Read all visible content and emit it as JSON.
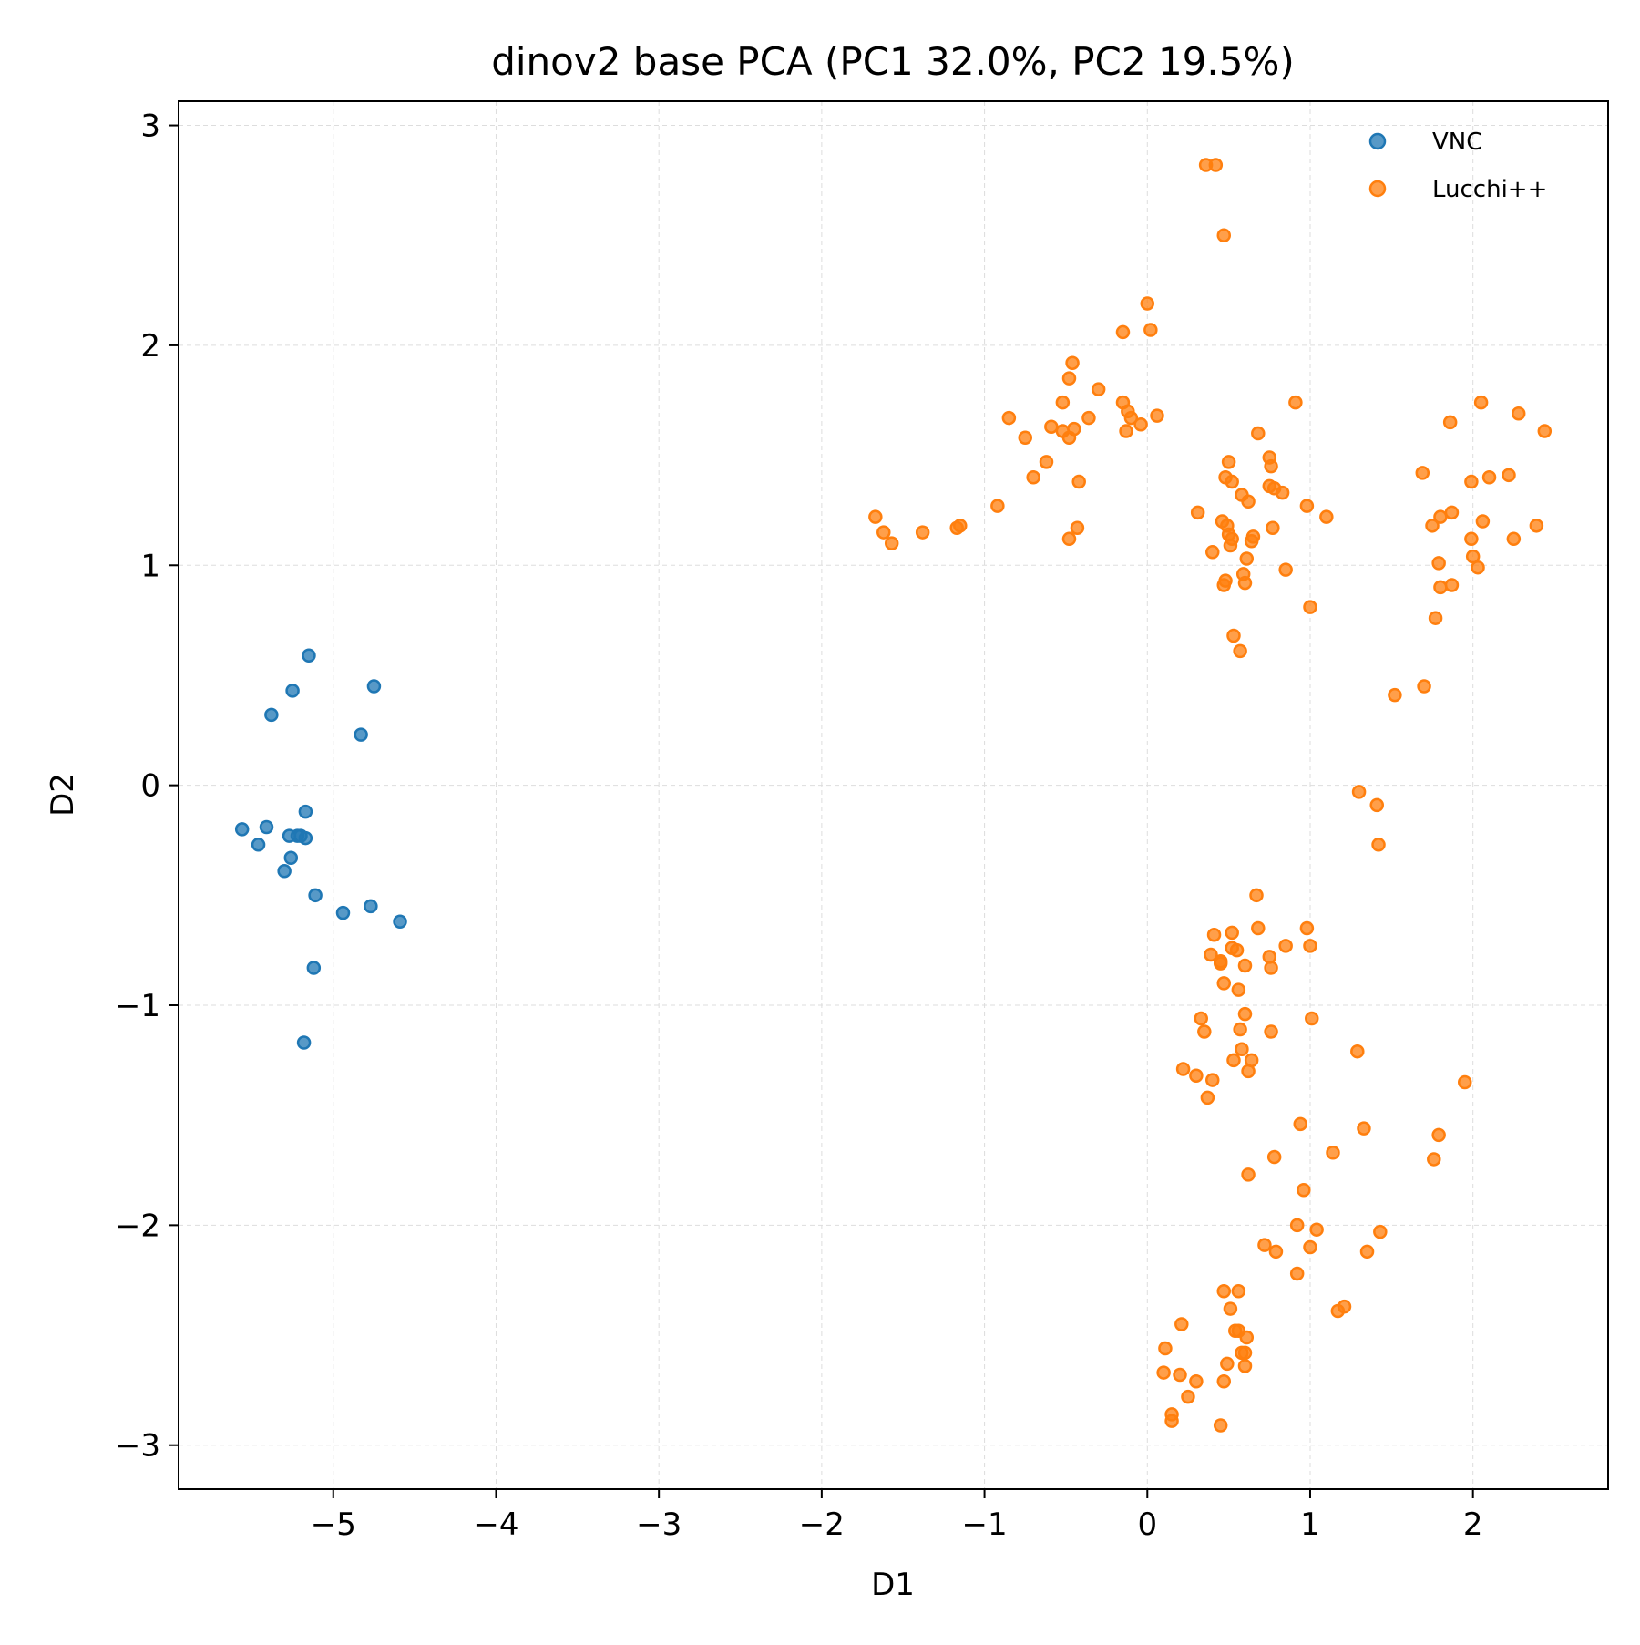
{
  "chart_data": {
    "type": "scatter",
    "title": "dinov2 base PCA (PC1 32.0%, PC2 19.5%)",
    "xlabel": "D1",
    "ylabel": "D2",
    "xlim": [
      -5.95,
      2.83
    ],
    "ylim": [
      -3.2,
      3.11
    ],
    "xticks": [
      -5,
      -4,
      -3,
      -2,
      -1,
      0,
      1,
      2
    ],
    "yticks": [
      -3,
      -2,
      -1,
      0,
      1,
      2,
      3
    ],
    "xtick_labels": [
      "−5",
      "−4",
      "−3",
      "−2",
      "−1",
      "0",
      "1",
      "2"
    ],
    "ytick_labels": [
      "−3",
      "−2",
      "−1",
      "0",
      "1",
      "2",
      "3"
    ],
    "grid": true,
    "legend_position": "top-right",
    "series": [
      {
        "name": "VNC",
        "color": "#1f77b4",
        "points": [
          [
            -5.15,
            0.59
          ],
          [
            -5.25,
            0.43
          ],
          [
            -4.75,
            0.45
          ],
          [
            -5.38,
            0.32
          ],
          [
            -4.83,
            0.23
          ],
          [
            -5.17,
            -0.12
          ],
          [
            -5.56,
            -0.2
          ],
          [
            -5.41,
            -0.19
          ],
          [
            -5.46,
            -0.27
          ],
          [
            -5.27,
            -0.23
          ],
          [
            -5.22,
            -0.23
          ],
          [
            -5.2,
            -0.23
          ],
          [
            -5.17,
            -0.24
          ],
          [
            -5.26,
            -0.33
          ],
          [
            -5.3,
            -0.39
          ],
          [
            -5.11,
            -0.5
          ],
          [
            -4.94,
            -0.58
          ],
          [
            -4.77,
            -0.55
          ],
          [
            -4.59,
            -0.62
          ],
          [
            -5.12,
            -0.83
          ],
          [
            -5.18,
            -1.17
          ]
        ]
      },
      {
        "name": "Lucchi++",
        "color": "#ff7f0e",
        "points": [
          [
            0.36,
            2.82
          ],
          [
            0.42,
            2.82
          ],
          [
            0.47,
            2.5
          ],
          [
            0.0,
            2.19
          ],
          [
            -0.15,
            2.06
          ],
          [
            0.02,
            2.07
          ],
          [
            -0.46,
            1.92
          ],
          [
            -0.48,
            1.85
          ],
          [
            -0.3,
            1.8
          ],
          [
            -0.52,
            1.74
          ],
          [
            -0.15,
            1.74
          ],
          [
            -0.12,
            1.7
          ],
          [
            -0.1,
            1.67
          ],
          [
            -0.36,
            1.67
          ],
          [
            0.06,
            1.68
          ],
          [
            -0.04,
            1.64
          ],
          [
            -0.85,
            1.67
          ],
          [
            -0.59,
            1.63
          ],
          [
            -0.52,
            1.61
          ],
          [
            -0.45,
            1.62
          ],
          [
            -0.48,
            1.58
          ],
          [
            -0.75,
            1.58
          ],
          [
            -0.13,
            1.61
          ],
          [
            -0.62,
            1.47
          ],
          [
            -0.42,
            1.38
          ],
          [
            -0.7,
            1.4
          ],
          [
            -0.43,
            1.17
          ],
          [
            -0.48,
            1.12
          ],
          [
            -0.92,
            1.27
          ],
          [
            -1.15,
            1.18
          ],
          [
            -1.17,
            1.17
          ],
          [
            -1.38,
            1.15
          ],
          [
            -1.57,
            1.1
          ],
          [
            -1.62,
            1.15
          ],
          [
            -1.67,
            1.22
          ],
          [
            0.91,
            1.74
          ],
          [
            0.68,
            1.6
          ],
          [
            0.75,
            1.49
          ],
          [
            0.5,
            1.47
          ],
          [
            0.76,
            1.45
          ],
          [
            0.48,
            1.4
          ],
          [
            0.52,
            1.38
          ],
          [
            0.75,
            1.36
          ],
          [
            0.78,
            1.35
          ],
          [
            0.83,
            1.33
          ],
          [
            0.58,
            1.32
          ],
          [
            0.62,
            1.29
          ],
          [
            0.98,
            1.27
          ],
          [
            0.31,
            1.24
          ],
          [
            1.1,
            1.22
          ],
          [
            0.46,
            1.2
          ],
          [
            0.49,
            1.18
          ],
          [
            0.5,
            1.14
          ],
          [
            0.52,
            1.12
          ],
          [
            0.65,
            1.13
          ],
          [
            0.64,
            1.11
          ],
          [
            0.77,
            1.17
          ],
          [
            0.51,
            1.09
          ],
          [
            0.4,
            1.06
          ],
          [
            0.61,
            1.03
          ],
          [
            0.59,
            0.96
          ],
          [
            0.85,
            0.98
          ],
          [
            0.48,
            0.93
          ],
          [
            0.47,
            0.91
          ],
          [
            0.6,
            0.92
          ],
          [
            1.0,
            0.81
          ],
          [
            0.53,
            0.68
          ],
          [
            0.57,
            0.61
          ],
          [
            1.86,
            1.65
          ],
          [
            2.05,
            1.74
          ],
          [
            2.28,
            1.69
          ],
          [
            2.44,
            1.61
          ],
          [
            1.69,
            1.42
          ],
          [
            1.99,
            1.38
          ],
          [
            2.1,
            1.4
          ],
          [
            2.22,
            1.41
          ],
          [
            1.87,
            1.24
          ],
          [
            1.8,
            1.22
          ],
          [
            1.75,
            1.18
          ],
          [
            2.06,
            1.2
          ],
          [
            2.39,
            1.18
          ],
          [
            1.99,
            1.12
          ],
          [
            2.25,
            1.12
          ],
          [
            2.0,
            1.04
          ],
          [
            1.79,
            1.01
          ],
          [
            2.03,
            0.99
          ],
          [
            1.8,
            0.9
          ],
          [
            1.87,
            0.91
          ],
          [
            1.77,
            0.76
          ],
          [
            1.7,
            0.45
          ],
          [
            1.52,
            0.41
          ],
          [
            1.3,
            -0.03
          ],
          [
            1.41,
            -0.09
          ],
          [
            1.42,
            -0.27
          ],
          [
            0.67,
            -0.5
          ],
          [
            0.68,
            -0.65
          ],
          [
            0.98,
            -0.65
          ],
          [
            0.41,
            -0.68
          ],
          [
            0.52,
            -0.67
          ],
          [
            0.85,
            -0.73
          ],
          [
            1.0,
            -0.73
          ],
          [
            0.52,
            -0.74
          ],
          [
            0.55,
            -0.75
          ],
          [
            0.39,
            -0.77
          ],
          [
            0.75,
            -0.78
          ],
          [
            0.45,
            -0.8
          ],
          [
            0.45,
            -0.81
          ],
          [
            0.6,
            -0.82
          ],
          [
            0.76,
            -0.83
          ],
          [
            0.47,
            -0.9
          ],
          [
            0.56,
            -0.93
          ],
          [
            0.6,
            -1.04
          ],
          [
            0.33,
            -1.06
          ],
          [
            1.01,
            -1.06
          ],
          [
            0.35,
            -1.12
          ],
          [
            0.57,
            -1.11
          ],
          [
            0.76,
            -1.12
          ],
          [
            0.58,
            -1.2
          ],
          [
            1.29,
            -1.21
          ],
          [
            0.53,
            -1.25
          ],
          [
            0.64,
            -1.25
          ],
          [
            0.22,
            -1.29
          ],
          [
            0.62,
            -1.3
          ],
          [
            0.3,
            -1.32
          ],
          [
            0.4,
            -1.34
          ],
          [
            1.95,
            -1.35
          ],
          [
            0.37,
            -1.42
          ],
          [
            0.94,
            -1.54
          ],
          [
            1.33,
            -1.56
          ],
          [
            1.79,
            -1.59
          ],
          [
            1.14,
            -1.67
          ],
          [
            0.78,
            -1.69
          ],
          [
            1.76,
            -1.7
          ],
          [
            0.62,
            -1.77
          ],
          [
            0.96,
            -1.84
          ],
          [
            0.92,
            -2.0
          ],
          [
            1.04,
            -2.02
          ],
          [
            1.43,
            -2.03
          ],
          [
            0.72,
            -2.09
          ],
          [
            1.0,
            -2.1
          ],
          [
            0.79,
            -2.12
          ],
          [
            1.35,
            -2.12
          ],
          [
            0.92,
            -2.22
          ],
          [
            0.47,
            -2.3
          ],
          [
            0.56,
            -2.3
          ],
          [
            1.21,
            -2.37
          ],
          [
            1.17,
            -2.39
          ],
          [
            0.51,
            -2.38
          ],
          [
            0.21,
            -2.45
          ],
          [
            0.54,
            -2.48
          ],
          [
            0.56,
            -2.48
          ],
          [
            0.61,
            -2.51
          ],
          [
            0.58,
            -2.58
          ],
          [
            0.6,
            -2.58
          ],
          [
            0.11,
            -2.56
          ],
          [
            0.49,
            -2.63
          ],
          [
            0.6,
            -2.64
          ],
          [
            0.1,
            -2.67
          ],
          [
            0.2,
            -2.68
          ],
          [
            0.3,
            -2.71
          ],
          [
            0.47,
            -2.71
          ],
          [
            0.25,
            -2.78
          ],
          [
            0.15,
            -2.86
          ],
          [
            0.15,
            -2.89
          ],
          [
            0.45,
            -2.91
          ]
        ]
      }
    ]
  }
}
